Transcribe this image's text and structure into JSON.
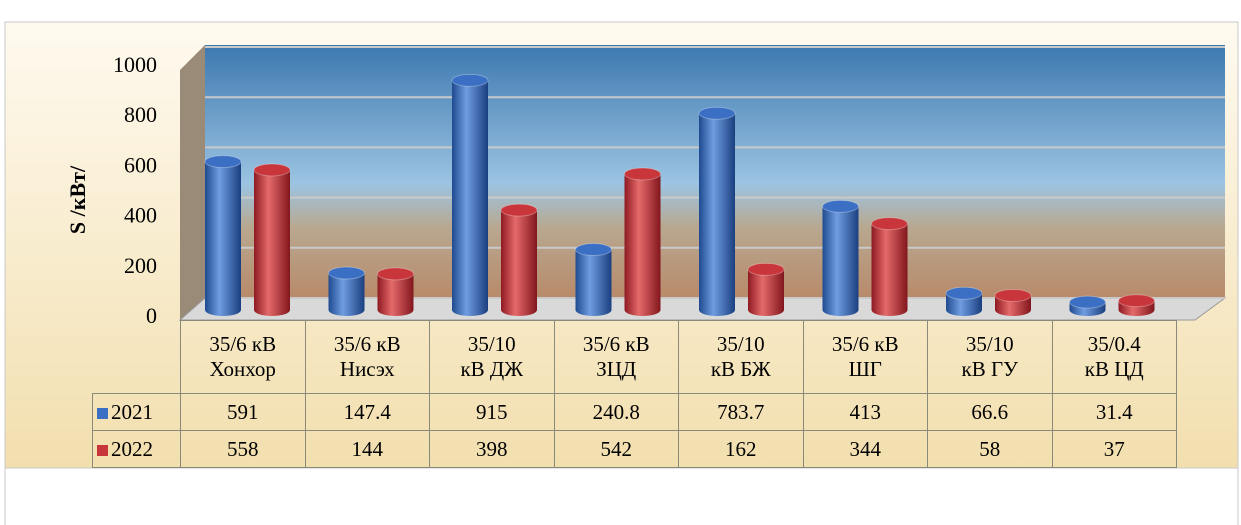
{
  "chart_data": {
    "type": "bar3d",
    "y_label": "S /кВт/",
    "categories": [
      "35/6 кВ\nХонхор",
      "35/6 кВ\nНисэх",
      "35/10\nкВ ДЖ",
      "35/6 кВ\nЗЦД",
      "35/10\nкВ БЖ",
      "35/6 кВ\nШГ",
      "35/10\nкВ ГУ",
      "35/0.4\nкВ ЦД"
    ],
    "series": [
      {
        "name": "2021",
        "color": "#3a6fc4",
        "values": [
          591,
          147.4,
          915,
          240.8,
          783.7,
          413,
          66.6,
          31.4
        ]
      },
      {
        "name": "2022",
        "color": "#c8353a",
        "values": [
          558,
          144,
          398,
          542,
          162,
          344,
          58,
          37
        ]
      }
    ],
    "ylim": [
      0,
      1000
    ],
    "yticks": [
      0,
      200,
      400,
      600,
      800,
      1000
    ],
    "grid": true
  }
}
